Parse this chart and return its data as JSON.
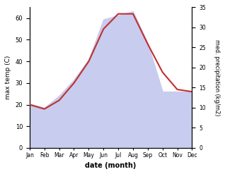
{
  "months": [
    "Jan",
    "Feb",
    "Mar",
    "Apr",
    "May",
    "Jun",
    "Jul",
    "Aug",
    "Sep",
    "Oct",
    "Nov",
    "Dec"
  ],
  "max_temp": [
    20,
    18,
    22,
    30,
    40,
    55,
    62,
    62,
    48,
    35,
    27,
    26
  ],
  "precipitation": [
    11,
    10,
    13,
    17,
    22,
    32,
    33,
    34,
    26,
    14,
    14,
    14
  ],
  "temp_color": "#c03030",
  "precip_fill_color": "#c8ccee",
  "temp_ylim": [
    0,
    65
  ],
  "precip_ylim": [
    0,
    35
  ],
  "xlabel": "date (month)",
  "ylabel_left": "max temp (C)",
  "ylabel_right": "med. precipitation (kg/m2)",
  "background_color": "#ffffff",
  "temp_yticks": [
    0,
    10,
    20,
    30,
    40,
    50,
    60
  ],
  "precip_yticks": [
    0,
    5,
    10,
    15,
    20,
    25,
    30,
    35
  ]
}
